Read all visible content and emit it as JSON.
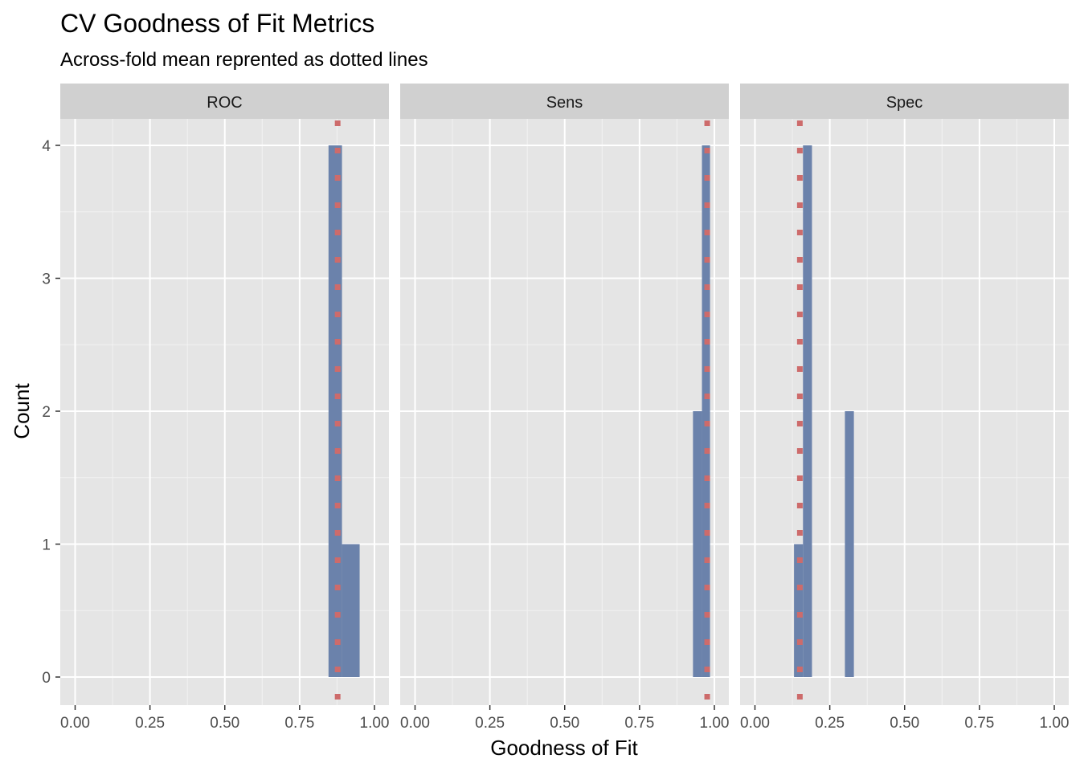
{
  "chart_data": {
    "type": "bar",
    "title": "CV Goodness of Fit Metrics",
    "subtitle": "Across-fold mean reprented as dotted lines",
    "xlabel": "Goodness of Fit",
    "ylabel": "Count",
    "xlim": [
      0,
      1
    ],
    "ylim": [
      0,
      4
    ],
    "x_ticks": [
      "0.00",
      "0.25",
      "0.50",
      "0.75",
      "1.00"
    ],
    "y_ticks": [
      "0",
      "1",
      "2",
      "3",
      "4"
    ],
    "bar_color": "#6b82ab",
    "mean_line_color": "#cd6b6b",
    "panel_bg": "#e5e5e5",
    "strip_bg": "#d0d0d0",
    "grid": true,
    "legend": "none",
    "facets": [
      {
        "label": "ROC",
        "mean": 0.877,
        "bins": [
          {
            "x0": 0.8465,
            "x1": 0.8915,
            "count": 4
          },
          {
            "x0": 0.8915,
            "x1": 0.9505,
            "count": 1
          }
        ]
      },
      {
        "label": "Sens",
        "mean": 0.976,
        "bins": [
          {
            "x0": 0.9285,
            "x1": 0.9585,
            "count": 2
          },
          {
            "x0": 0.9585,
            "x1": 0.9855,
            "count": 4
          }
        ]
      },
      {
        "label": "Spec",
        "mean": 0.15,
        "bins": [
          {
            "x0": 0.1305,
            "x1": 0.1605,
            "count": 1
          },
          {
            "x0": 0.1605,
            "x1": 0.1905,
            "count": 4
          },
          {
            "x0": 0.3005,
            "x1": 0.3305,
            "count": 2
          }
        ]
      }
    ]
  }
}
